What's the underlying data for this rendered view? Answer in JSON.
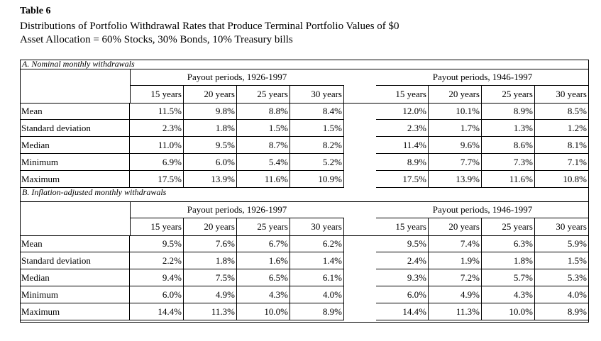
{
  "title": "Table 6",
  "subtitle": [
    "Distributions of Portfolio Withdrawal Rates that Produce Terminal Portfolio Values of $0",
    "Asset Allocation = 60% Stocks, 30% Bonds, 10% Treasury bills"
  ],
  "sections": [
    {
      "label": "A. Nominal monthly withdrawals",
      "groups": [
        {
          "name": "Payout periods, 1926-1997",
          "columns": [
            "15 years",
            "20 years",
            "25 years",
            "30 years"
          ]
        },
        {
          "name": "Payout periods, 1946-1997",
          "columns": [
            "15 years",
            "20 years",
            "25 years",
            "30 years"
          ]
        }
      ],
      "rows": [
        {
          "label": "Mean",
          "values": [
            "11.5%",
            "9.8%",
            "8.8%",
            "8.4%",
            "12.0%",
            "10.1%",
            "8.9%",
            "8.5%"
          ]
        },
        {
          "label": "Standard deviation",
          "values": [
            "2.3%",
            "1.8%",
            "1.5%",
            "1.5%",
            "2.3%",
            "1.7%",
            "1.3%",
            "1.2%"
          ]
        },
        {
          "label": "Median",
          "values": [
            "11.0%",
            "9.5%",
            "8.7%",
            "8.2%",
            "11.4%",
            "9.6%",
            "8.6%",
            "8.1%"
          ]
        },
        {
          "label": "Minimum",
          "values": [
            "6.9%",
            "6.0%",
            "5.4%",
            "5.2%",
            "8.9%",
            "7.7%",
            "7.3%",
            "7.1%"
          ]
        },
        {
          "label": "Maximum",
          "values": [
            "17.5%",
            "13.9%",
            "11.6%",
            "10.9%",
            "17.5%",
            "13.9%",
            "11.6%",
            "10.8%"
          ]
        }
      ]
    },
    {
      "label": "B. Inflation-adjusted monthly withdrawals",
      "groups": [
        {
          "name": "Payout periods, 1926-1997",
          "columns": [
            "15 years",
            "20 years",
            "25 years",
            "30 years"
          ]
        },
        {
          "name": "Payout periods, 1946-1997",
          "columns": [
            "15 years",
            "20 years",
            "25 years",
            "30 years"
          ]
        }
      ],
      "rows": [
        {
          "label": "Mean",
          "values": [
            "9.5%",
            "7.6%",
            "6.7%",
            "6.2%",
            "9.5%",
            "7.4%",
            "6.3%",
            "5.9%"
          ]
        },
        {
          "label": "Standard deviation",
          "values": [
            "2.2%",
            "1.8%",
            "1.6%",
            "1.4%",
            "2.4%",
            "1.9%",
            "1.8%",
            "1.5%"
          ]
        },
        {
          "label": "Median",
          "values": [
            "9.4%",
            "7.5%",
            "6.5%",
            "6.1%",
            "9.3%",
            "7.2%",
            "5.7%",
            "5.3%"
          ]
        },
        {
          "label": "Minimum",
          "values": [
            "6.0%",
            "4.9%",
            "4.3%",
            "4.0%",
            "6.0%",
            "4.9%",
            "4.3%",
            "4.0%"
          ]
        },
        {
          "label": "Maximum",
          "values": [
            "14.4%",
            "11.3%",
            "10.0%",
            "8.9%",
            "14.4%",
            "11.3%",
            "10.0%",
            "8.9%"
          ]
        }
      ]
    }
  ]
}
